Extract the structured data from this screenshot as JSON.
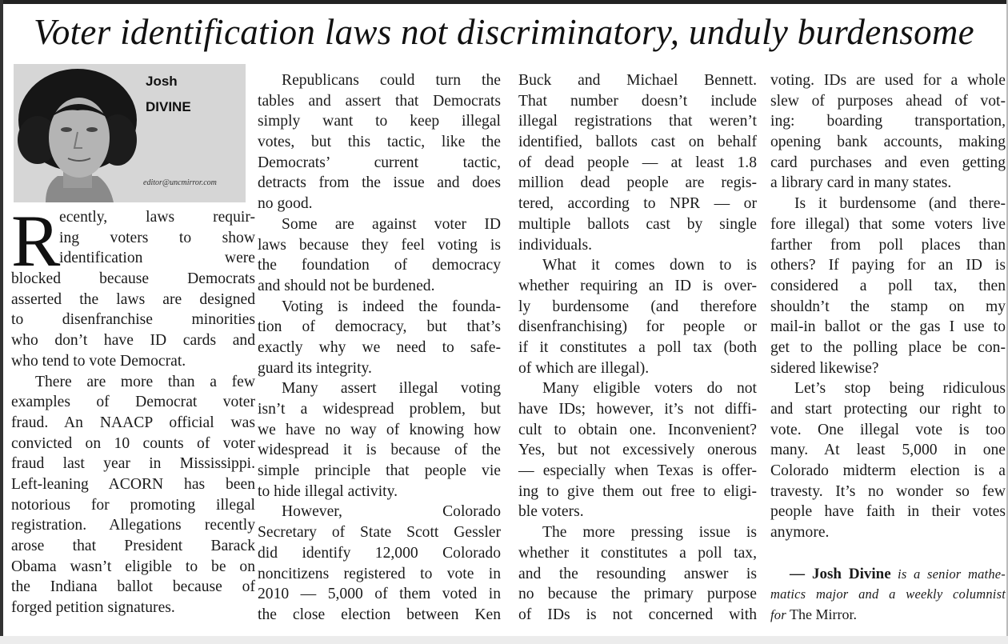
{
  "headline": "Voter identification laws not discriminatory, unduly burdensome",
  "byline_box": {
    "first_name": "Josh",
    "last_name": "DIVINE",
    "email": "editor@uncmirror.com"
  },
  "dropcap_letter": "R",
  "columns": [
    [
      {
        "dropcap": true,
        "lines": [
          "ecently, laws requir-",
          "ing voters to show",
          "identification were",
          "blocked because Democrats",
          "asserted the laws are designed",
          "to disenfranchise minorities",
          "who don’t have ID cards and",
          "who tend to vote Democrat."
        ]
      },
      {
        "lines": [
          "There are more than a few",
          "examples of Democrat voter",
          "fraud. An NAACP official was",
          "convicted on 10 counts of voter",
          "fraud last year in Mississippi.",
          "Left-leaning ACORN has been",
          "notorious for promoting illegal",
          "registration. Allegations recently",
          "arose that President Barack",
          "Obama wasn’t eligible to be on",
          "the Indiana ballot because of",
          "forged petition signatures."
        ]
      }
    ],
    [
      {
        "lines": [
          "Republicans could turn the",
          "tables and assert that Democrats",
          "simply want to keep illegal",
          "votes, but this tactic, like the",
          "Democrats’ current tactic,",
          "detracts from the issue and does",
          "no good."
        ]
      },
      {
        "lines": [
          "Some are against voter ID",
          "laws because they feel voting is",
          "the foundation of democracy",
          "and should not be burdened."
        ]
      },
      {
        "lines": [
          "Voting is indeed the founda-",
          "tion of democracy, but that’s",
          "exactly why we need to safe-",
          "guard its integrity."
        ]
      },
      {
        "lines": [
          "Many assert illegal voting",
          "isn’t a widespread problem, but",
          "we have no way of knowing how",
          "widespread it is because of the",
          "simple principle that people vie",
          "to hide illegal activity."
        ]
      },
      {
        "lines": [
          "However, Colorado",
          "Secretary of State Scott Gessler",
          "did identify 12,000 Colorado",
          "noncitizens registered to vote in",
          "2010 — 5,000 of them voted in",
          "the close election between Ken"
        ],
        "continues": true
      }
    ],
    [
      {
        "noindent": true,
        "lines": [
          "Buck and Michael Bennett.",
          "That number doesn’t include",
          "illegal registrations that weren’t",
          "identified, ballots cast on behalf",
          "of dead people — at least 1.8",
          "million dead people are regis-",
          "tered, according to NPR — or",
          "multiple ballots cast by single",
          "individuals."
        ]
      },
      {
        "lines": [
          "What it comes down to is",
          "whether requiring an ID is over-",
          "ly burdensome (and therefore",
          "disenfranchising) for people or",
          "if it constitutes a poll tax (both",
          "of which are illegal)."
        ]
      },
      {
        "lines": [
          "Many eligible voters do not",
          "have IDs; however, it’s not diffi-",
          "cult to obtain one. Inconvenient?",
          "Yes, but not excessively onerous",
          "— especially when Texas is offer-",
          "ing to give them out free to eligi-",
          "ble voters."
        ]
      },
      {
        "lines": [
          "The more pressing issue is",
          "whether it constitutes a poll tax,",
          "and the resounding answer is",
          "no because the primary purpose",
          "of IDs is not concerned with"
        ],
        "continues": true
      }
    ],
    [
      {
        "noindent": true,
        "lines": [
          "voting. IDs are used for a whole",
          "slew of purposes ahead of vot-",
          "ing: boarding transportation,",
          "opening bank accounts, making",
          "card purchases and even getting",
          "a library card in many states."
        ]
      },
      {
        "lines": [
          "Is it burdensome (and there-",
          "fore illegal) that some voters live",
          "farther from poll places than",
          "others? If paying for an ID is",
          "considered a poll tax, then",
          "shouldn’t the stamp on my",
          "mail-in ballot or the gas I use to",
          "get to the polling place be con-",
          "sidered likewise?"
        ]
      },
      {
        "lines": [
          "Let’s stop being ridiculous",
          "and start protecting our right to",
          "vote. One illegal vote is too",
          "many. At least 5,000 in one",
          "Colorado midterm election is a",
          "travesty. It’s no wonder so few",
          "people have faith in their votes",
          "anymore."
        ]
      }
    ]
  ],
  "signature": {
    "author": "— Josh Divine",
    "bio_line1": "is a senior mathe-",
    "bio_line2": "matics major and a weekly columnist",
    "bio_for": "for",
    "publication": "The Mirror."
  }
}
